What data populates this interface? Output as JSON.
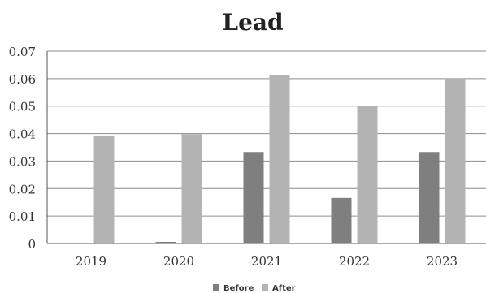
{
  "chart_data": {
    "type": "bar",
    "title": "Lead",
    "categories": [
      "2019",
      "2020",
      "2021",
      "2022",
      "2023"
    ],
    "series": [
      {
        "name": "Before",
        "values": [
          0,
          0.0006,
          0.0333,
          0.0166,
          0.0333
        ],
        "color": "#7f7f7f"
      },
      {
        "name": "After",
        "values": [
          0.0393,
          0.0398,
          0.0612,
          0.05,
          0.06
        ],
        "color": "#b3b3b3"
      }
    ],
    "ylim": [
      0,
      0.07
    ],
    "yticks": [
      "0",
      "0.01",
      "0.02",
      "0.03",
      "0.04",
      "0.05",
      "0.06",
      "0.07"
    ],
    "grid": true,
    "legend": "bottom",
    "xlabel": "",
    "ylabel": ""
  }
}
